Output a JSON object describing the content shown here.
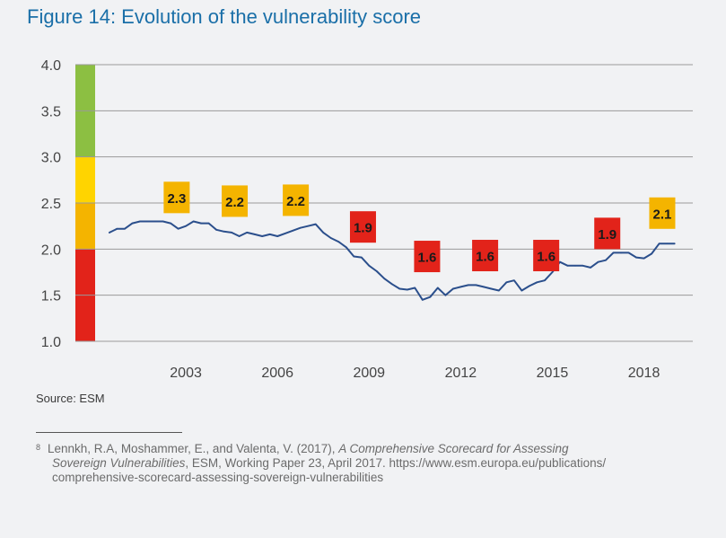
{
  "figure": {
    "title": "Figure 14: Evolution of the vulnerability score",
    "source": "Source: ESM"
  },
  "chart_data": {
    "type": "line",
    "title": "Figure 14: Evolution of the vulnerability score",
    "xlabel": "",
    "ylabel": "",
    "ylim": [
      1.0,
      4.0
    ],
    "xlim": [
      2000.0,
      2019.6
    ],
    "y_ticks": [
      "1.0",
      "1.5",
      "2.0",
      "2.5",
      "3.0",
      "3.5",
      "4.0"
    ],
    "x_ticks": [
      "2003",
      "2006",
      "2009",
      "2012",
      "2015",
      "2018"
    ],
    "grid": true,
    "color_bands": [
      {
        "from": 1.0,
        "to": 2.0,
        "color": "#e2231a"
      },
      {
        "from": 2.0,
        "to": 2.5,
        "color": "#f4b400"
      },
      {
        "from": 2.5,
        "to": 3.0,
        "color": "#ffd400"
      },
      {
        "from": 3.0,
        "to": 4.0,
        "color": "#8cbf42"
      }
    ],
    "series": [
      {
        "name": "Vulnerability score",
        "color": "#2b4f8c",
        "x": [
          2000.5,
          2000.75,
          2001.0,
          2001.25,
          2001.5,
          2001.75,
          2002.0,
          2002.25,
          2002.5,
          2002.75,
          2003.0,
          2003.25,
          2003.5,
          2003.75,
          2004.0,
          2004.25,
          2004.5,
          2004.75,
          2005.0,
          2005.25,
          2005.5,
          2005.75,
          2006.0,
          2006.25,
          2006.5,
          2006.75,
          2007.0,
          2007.25,
          2007.5,
          2007.75,
          2008.0,
          2008.25,
          2008.5,
          2008.75,
          2009.0,
          2009.25,
          2009.5,
          2009.75,
          2010.0,
          2010.25,
          2010.5,
          2010.75,
          2011.0,
          2011.25,
          2011.5,
          2011.75,
          2012.0,
          2012.25,
          2012.5,
          2012.75,
          2013.0,
          2013.25,
          2013.5,
          2013.75,
          2014.0,
          2014.25,
          2014.5,
          2014.75,
          2015.0,
          2015.25,
          2015.5,
          2015.75,
          2016.0,
          2016.25,
          2016.5,
          2016.75,
          2017.0,
          2017.25,
          2017.5,
          2017.75,
          2018.0,
          2018.25,
          2018.5,
          2018.75,
          2019.0
        ],
        "values": [
          2.18,
          2.22,
          2.22,
          2.28,
          2.3,
          2.3,
          2.3,
          2.3,
          2.28,
          2.22,
          2.25,
          2.3,
          2.28,
          2.28,
          2.21,
          2.19,
          2.18,
          2.14,
          2.18,
          2.16,
          2.14,
          2.16,
          2.14,
          2.17,
          2.2,
          2.23,
          2.25,
          2.27,
          2.18,
          2.12,
          2.08,
          2.02,
          1.92,
          1.91,
          1.82,
          1.76,
          1.68,
          1.62,
          1.57,
          1.56,
          1.58,
          1.45,
          1.48,
          1.58,
          1.5,
          1.57,
          1.59,
          1.61,
          1.61,
          1.59,
          1.57,
          1.55,
          1.64,
          1.66,
          1.55,
          1.6,
          1.64,
          1.66,
          1.75,
          1.86,
          1.82,
          1.82,
          1.82,
          1.8,
          1.86,
          1.88,
          1.96,
          1.96,
          1.96,
          1.91,
          1.9,
          1.95,
          2.06,
          2.06,
          2.06
        ]
      }
    ],
    "annotations": [
      {
        "label": "2.3",
        "x": 2002.7,
        "y": 2.56,
        "color": "#f4b400"
      },
      {
        "label": "2.2",
        "x": 2004.6,
        "y": 2.52,
        "color": "#f4b400"
      },
      {
        "label": "2.2",
        "x": 2006.6,
        "y": 2.53,
        "color": "#f4b400"
      },
      {
        "label": "1.9",
        "x": 2008.8,
        "y": 2.24,
        "color": "#e2231a"
      },
      {
        "label": "1.6",
        "x": 2010.9,
        "y": 1.92,
        "color": "#e2231a"
      },
      {
        "label": "1.6",
        "x": 2012.8,
        "y": 1.93,
        "color": "#e2231a"
      },
      {
        "label": "1.6",
        "x": 2014.8,
        "y": 1.93,
        "color": "#e2231a"
      },
      {
        "label": "1.9",
        "x": 2016.8,
        "y": 2.17,
        "color": "#e2231a"
      },
      {
        "label": "2.1",
        "x": 2018.6,
        "y": 2.39,
        "color": "#f4b400"
      }
    ]
  },
  "footnote": {
    "marker": "8",
    "text1": "Lennkh, R.A, Moshammer, E., and Valenta, V. (2017), ",
    "italic1": "A Comprehensive Scorecard for Assessing",
    "italic2": "Sovereign Vulnerabilities",
    "text2": ", ESM, Working Paper 23, April 2017. https://www.esm.europa.eu/publications/",
    "text3": "comprehensive-scorecard-assessing-sovereign-vulnerabilities"
  }
}
